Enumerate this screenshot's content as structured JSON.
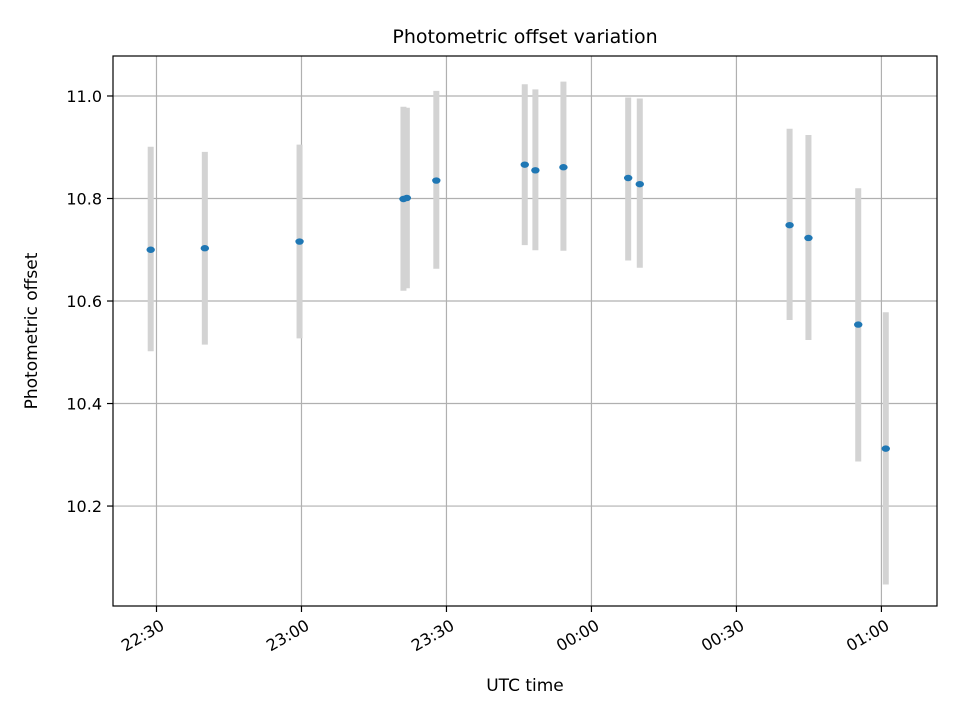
{
  "chart_data": {
    "type": "scatter",
    "title": "Photometric offset variation",
    "xlabel": "UTC time",
    "ylabel": "Photometric offset",
    "x_axis": "time",
    "x_ticks": [
      "22:30",
      "23:00",
      "23:30",
      "00:00",
      "00:30",
      "01:00"
    ],
    "x_tick_minutes": [
      0,
      30,
      60,
      90,
      120,
      150
    ],
    "xlim_minutes": [
      -9.0,
      161.5
    ],
    "xlim": [
      "22:21",
      "01:11.5"
    ],
    "y_ticks": [
      "10.2",
      "10.4",
      "10.6",
      "10.8",
      "11.0"
    ],
    "y_tick_values": [
      10.2,
      10.4,
      10.6,
      10.8,
      11.0
    ],
    "ylim": [
      10.005,
      11.078
    ],
    "grid": true,
    "series": [
      {
        "marker_color": "#1f77b4",
        "errorbar_color": "#d3d3d3",
        "points": [
          {
            "t": "22:28.8",
            "x": -1.2,
            "y": 10.7,
            "lo": 10.502,
            "hi": 10.901
          },
          {
            "t": "22:40.0",
            "x": 10.0,
            "y": 10.703,
            "lo": 10.515,
            "hi": 10.891
          },
          {
            "t": "22:59.6",
            "x": 29.6,
            "y": 10.716,
            "lo": 10.527,
            "hi": 10.905
          },
          {
            "t": "23:21.1",
            "x": 51.1,
            "y": 10.799,
            "lo": 10.62,
            "hi": 10.979
          },
          {
            "t": "23:21.8",
            "x": 51.8,
            "y": 10.801,
            "lo": 10.625,
            "hi": 10.977
          },
          {
            "t": "23:27.9",
            "x": 57.9,
            "y": 10.835,
            "lo": 10.663,
            "hi": 11.01
          },
          {
            "t": "23:46.2",
            "x": 76.2,
            "y": 10.866,
            "lo": 10.709,
            "hi": 11.023
          },
          {
            "t": "23:48.4",
            "x": 78.4,
            "y": 10.855,
            "lo": 10.699,
            "hi": 11.013
          },
          {
            "t": "23:54.2",
            "x": 84.2,
            "y": 10.861,
            "lo": 10.698,
            "hi": 11.028
          },
          {
            "t": "00:07.6",
            "x": 97.6,
            "y": 10.84,
            "lo": 10.679,
            "hi": 10.997
          },
          {
            "t": "00:10.0",
            "x": 100.0,
            "y": 10.828,
            "lo": 10.665,
            "hi": 10.995
          },
          {
            "t": "00:41.0",
            "x": 131.0,
            "y": 10.748,
            "lo": 10.563,
            "hi": 10.936
          },
          {
            "t": "00:44.9",
            "x": 134.9,
            "y": 10.723,
            "lo": 10.524,
            "hi": 10.924
          },
          {
            "t": "00:55.2",
            "x": 145.2,
            "y": 10.554,
            "lo": 10.287,
            "hi": 10.82
          },
          {
            "t": "01:00.9",
            "x": 150.9,
            "y": 10.312,
            "lo": 10.047,
            "hi": 10.578
          }
        ]
      }
    ]
  }
}
